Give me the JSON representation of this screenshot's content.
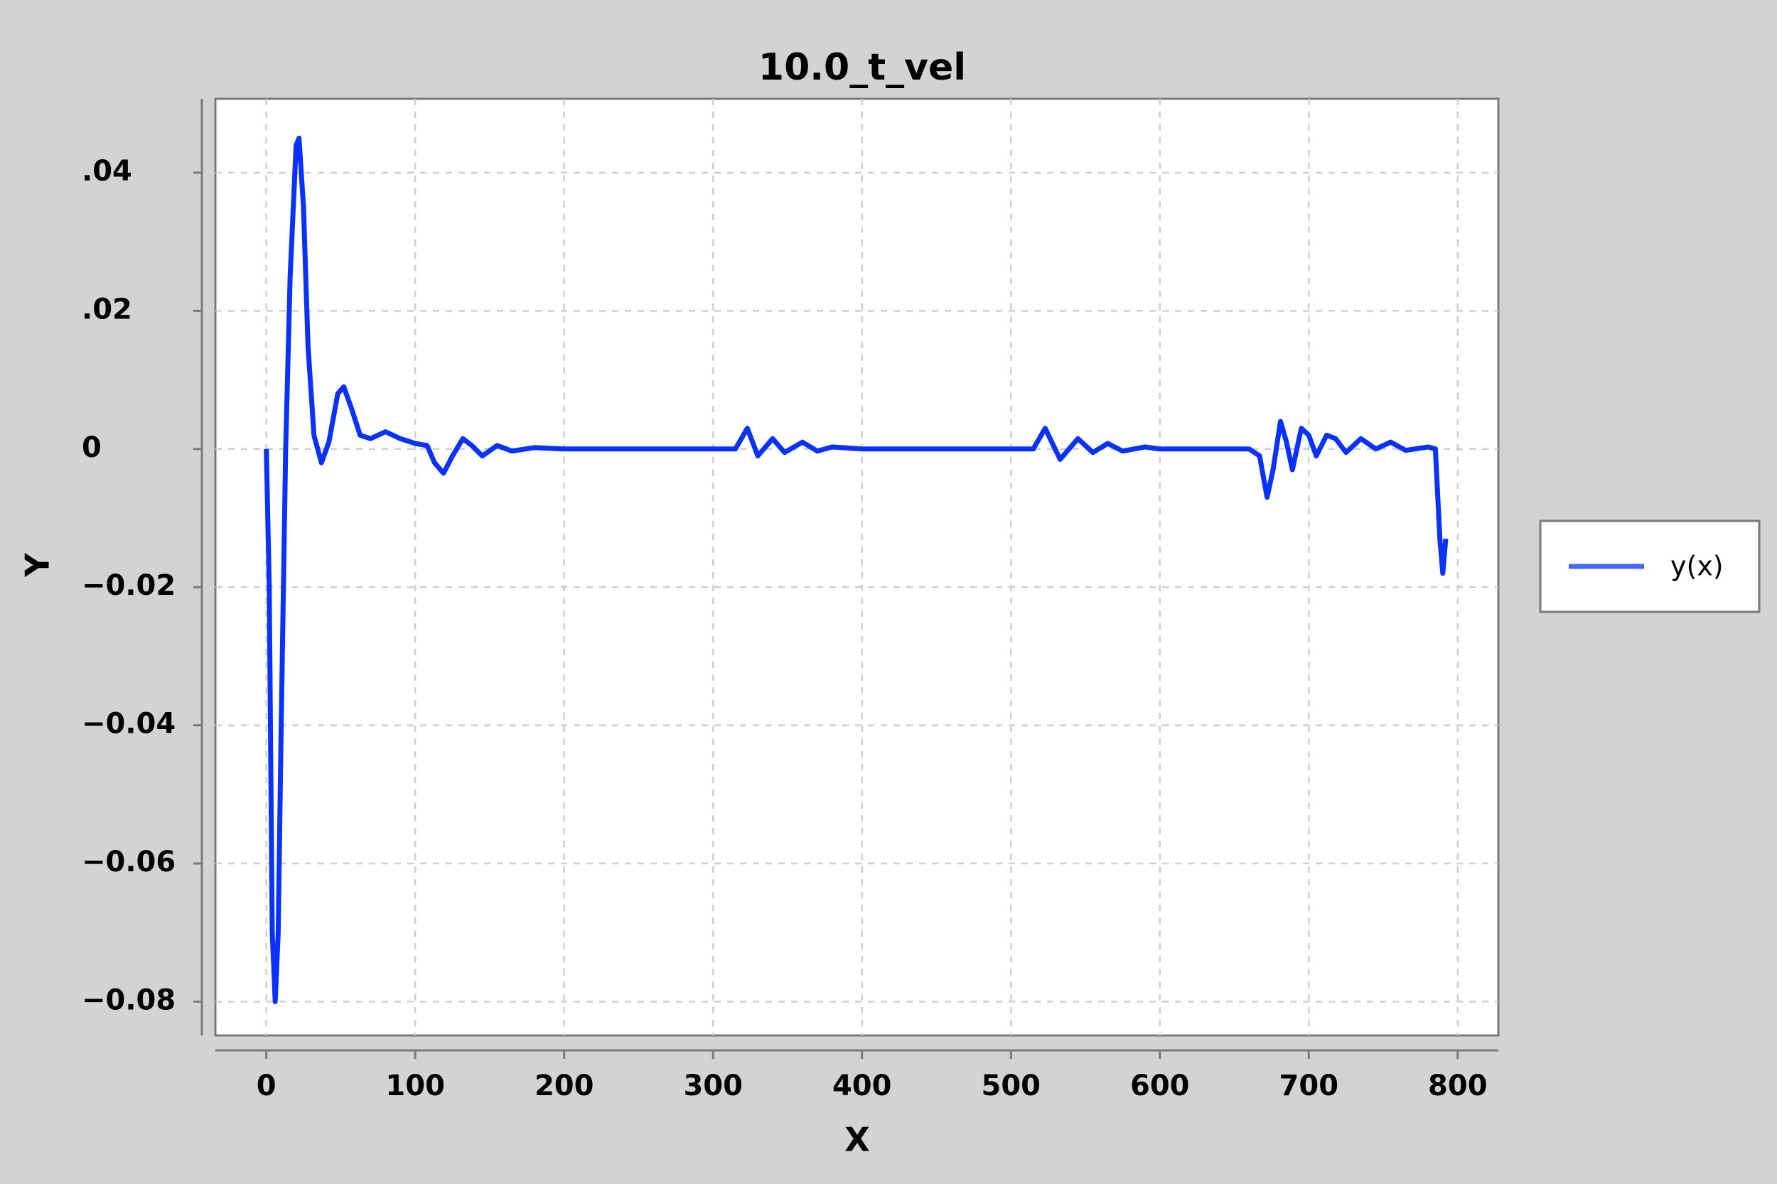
{
  "chart_data": {
    "type": "line",
    "title": "10.0_t_vel",
    "x_label": "X",
    "y_label": "Y",
    "x": [
      0,
      2,
      4,
      6,
      8,
      10,
      13,
      16,
      20,
      22,
      25,
      28,
      32,
      37,
      42,
      48,
      52,
      57,
      63,
      70,
      80,
      90,
      100,
      108,
      113,
      119,
      125,
      132,
      138,
      145,
      155,
      165,
      180,
      200,
      280,
      300,
      315,
      323,
      330,
      340,
      348,
      360,
      370,
      380,
      400,
      515,
      523,
      533,
      545,
      555,
      565,
      575,
      590,
      600,
      660,
      667,
      672,
      676,
      681,
      685,
      689,
      695,
      700,
      705,
      712,
      718,
      725,
      735,
      745,
      755,
      765,
      780,
      785,
      788,
      790,
      792
    ],
    "series": [
      {
        "name": "y(x)",
        "color": "#0a32ff",
        "values": [
          0,
          -0.02,
          -0.07,
          -0.08,
          -0.07,
          -0.04,
          0,
          0.025,
          0.044,
          0.045,
          0.035,
          0.015,
          0.002,
          -0.002,
          0.001,
          0.008,
          0.009,
          0.006,
          0.002,
          0.0015,
          0.0025,
          0.0015,
          0.0008,
          0.0005,
          -0.002,
          -0.0035,
          -0.001,
          0.0015,
          0.0005,
          -0.001,
          0.0005,
          -0.0003,
          0.0002,
          0,
          0,
          0,
          0,
          0.003,
          -0.001,
          0.0015,
          -0.0005,
          0.001,
          -0.0003,
          0.0003,
          0,
          0,
          0.003,
          -0.0015,
          0.0015,
          -0.0005,
          0.0008,
          -0.0003,
          0.0003,
          0,
          0,
          -0.001,
          -0.007,
          -0.003,
          0.004,
          0.001,
          -0.003,
          0.003,
          0.002,
          -0.001,
          0.002,
          0.0015,
          -0.0005,
          0.0015,
          0,
          0.001,
          -0.0002,
          0.0003,
          0,
          -0.013,
          -0.018,
          -0.013
        ]
      }
    ],
    "xlim": [
      -34.2,
      827.3
    ],
    "xticks": [
      0,
      100,
      200,
      300,
      400,
      500,
      600,
      700,
      800
    ],
    "ylim": [
      -0.0849,
      0.0507
    ],
    "yticks": [
      {
        "value": 0.04,
        "label": ".04"
      },
      {
        "value": 0.02,
        "label": ".02"
      },
      0,
      {
        "value": -0.02,
        "label": "−0.02"
      },
      {
        "value": -0.04,
        "label": "−0.04"
      },
      {
        "value": -0.06,
        "label": "−0.06"
      },
      {
        "value": -0.08,
        "label": "−0.08"
      }
    ],
    "grid": true,
    "legend": "right"
  }
}
